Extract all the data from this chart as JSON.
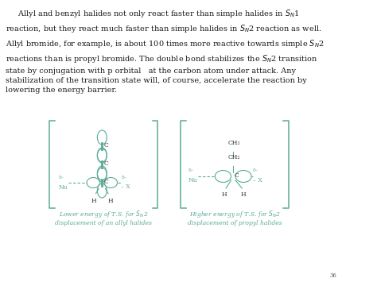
{
  "bg_color": "#ffffff",
  "dark_text": "#3a3a3a",
  "teal": "#5aab96",
  "page_number": "36",
  "para_lines": [
    "     Allyl and benzyl halides not only react faster than simple halides in S",
    "reaction, but they react much faster than simple halides in S",
    "Allyl bromide, for example, is about 100 times more reactive towards simple S",
    "reactions than is propyl bromide. The double bond stabilizes the S",
    "state by conjugation with p orbital   at the carbon atom under attack. Any",
    "stabilization of the transition state will, of course, accelerate the reaction by",
    "lowering the energy barrier."
  ],
  "caption_left1": "Lower energy of T.S. for S",
  "caption_left2": "displacement of an allyl halides",
  "caption_right1": "Higher energy of T.S. for S",
  "caption_right2": "displacement of propyl halides"
}
